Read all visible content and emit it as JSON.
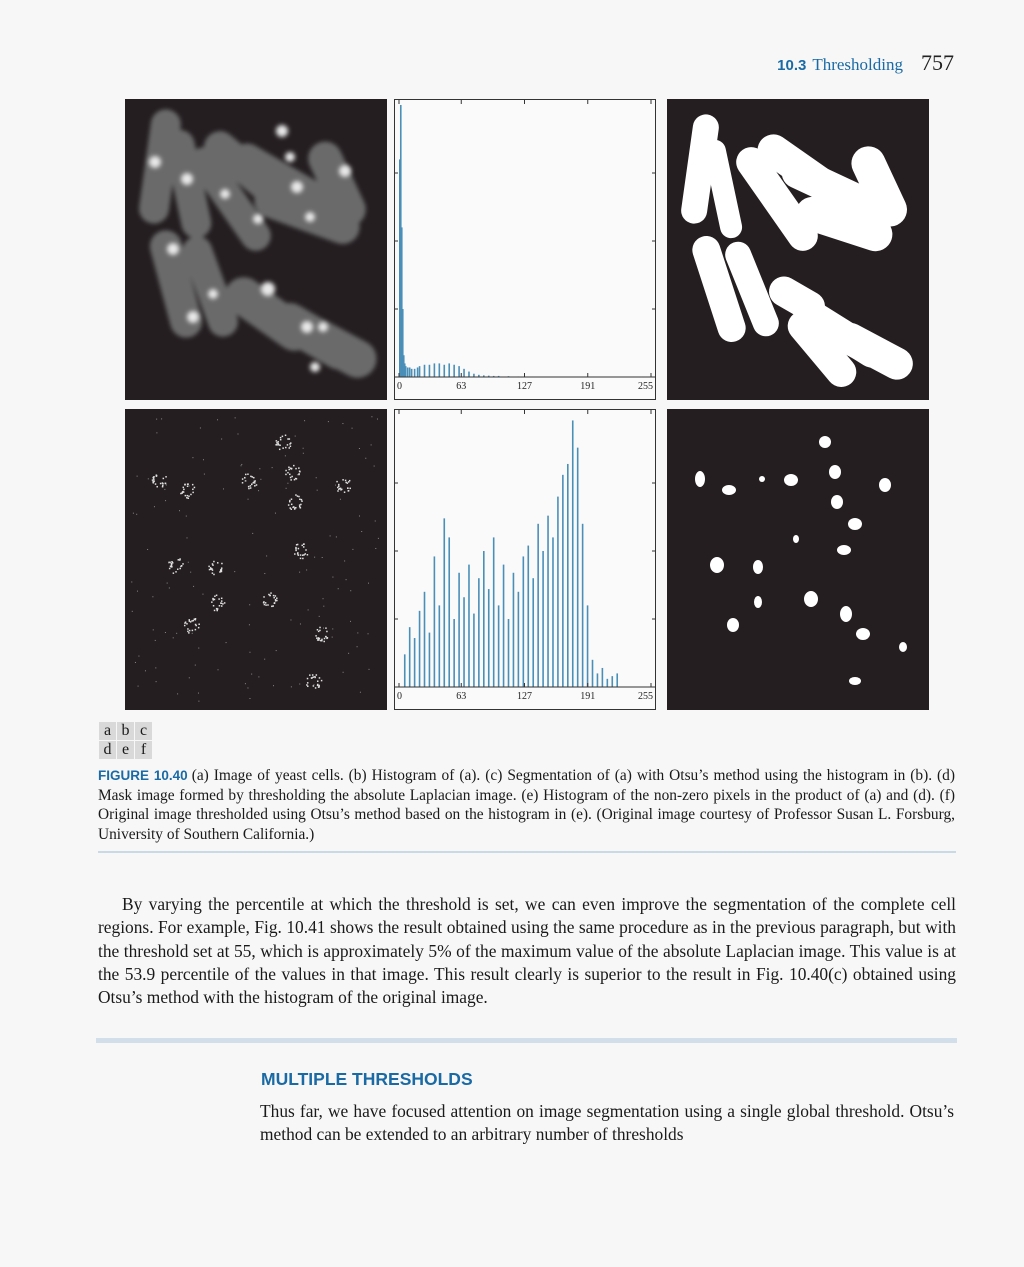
{
  "header": {
    "section_number": "10.3",
    "section_title": "Thresholding",
    "page_number": "757"
  },
  "figure": {
    "panel_labels": [
      [
        "a",
        "b",
        "c"
      ],
      [
        "d",
        "e",
        "f"
      ]
    ],
    "histogram_tick_labels": [
      "0",
      "63",
      "127",
      "191",
      "255"
    ],
    "label": "FIGURE 10.40",
    "caption": "(a) Image of yeast cells. (b) Histogram of (a). (c) Segmentation of (a) with Otsu’s method using the histogram in (b). (d) Mask image formed by thresholding the absolute Laplacian image. (e) Histogram of the non-zero pixels in the product of (a) and (d). (f) Original image thresholded using Otsu’s method based on the histogram in (e). (Original image courtesy of Professor Susan L. Forsburg, University of Southern California.)"
  },
  "chart_data": [
    {
      "type": "bar",
      "title": "",
      "xlabel": "",
      "ylabel": "",
      "xlim": [
        0,
        255
      ],
      "x_ticks": [
        0,
        63,
        127,
        191,
        255
      ],
      "x": [
        0,
        1,
        2,
        3,
        4,
        5,
        6,
        8,
        10,
        12,
        15,
        18,
        20,
        25,
        30,
        35,
        40,
        45,
        50,
        55,
        60,
        65,
        70,
        75,
        80,
        85,
        90,
        95,
        100,
        110,
        120,
        130,
        140
      ],
      "values": [
        0.8,
        1.0,
        0.55,
        0.25,
        0.08,
        0.05,
        0.04,
        0.035,
        0.035,
        0.03,
        0.03,
        0.035,
        0.04,
        0.045,
        0.045,
        0.05,
        0.05,
        0.045,
        0.05,
        0.045,
        0.04,
        0.03,
        0.02,
        0.012,
        0.008,
        0.006,
        0.005,
        0.004,
        0.004,
        0.003,
        0.002,
        0.001,
        0.0
      ],
      "colors": {
        "bar": "#4a8fb8"
      }
    },
    {
      "type": "bar",
      "title": "",
      "xlabel": "",
      "ylabel": "",
      "xlim": [
        0,
        255
      ],
      "x_ticks": [
        0,
        63,
        127,
        191,
        255
      ],
      "x": [
        5,
        10,
        15,
        20,
        25,
        30,
        35,
        40,
        45,
        50,
        55,
        60,
        65,
        70,
        75,
        80,
        85,
        90,
        95,
        100,
        105,
        110,
        115,
        120,
        125,
        130,
        135,
        140,
        145,
        150,
        155,
        160,
        165,
        170,
        175,
        180,
        185,
        190,
        195,
        200,
        205,
        210,
        215,
        220,
        225
      ],
      "values": [
        0.12,
        0.22,
        0.18,
        0.28,
        0.35,
        0.2,
        0.48,
        0.3,
        0.62,
        0.55,
        0.25,
        0.42,
        0.33,
        0.45,
        0.27,
        0.4,
        0.5,
        0.36,
        0.55,
        0.3,
        0.45,
        0.25,
        0.42,
        0.35,
        0.48,
        0.52,
        0.4,
        0.6,
        0.5,
        0.63,
        0.55,
        0.7,
        0.78,
        0.82,
        0.98,
        0.88,
        0.6,
        0.3,
        0.1,
        0.05,
        0.07,
        0.03,
        0.04,
        0.05,
        0.0
      ],
      "colors": {
        "bar": "#4a8fb8"
      }
    }
  ],
  "body": {
    "paragraph": "By varying the percentile at which the threshold is set, we can even improve the segmentation of the complete cell regions. For example, Fig. 10.41 shows the result obtained using the same procedure as in the previous paragraph, but with the threshold set at 55, which is approximately 5% of the maximum value of the absolute Laplacian image. This value is at the 53.9 percentile of the values in that image. This result clearly is superior to the result in Fig. 10.40(c) obtained using Otsu’s method with the histogram of the original image.",
    "section_heading": "MULTIPLE THRESHOLDS",
    "section_paragraph": "Thus far, we have focused attention on image segmentation using a single global threshold. Otsu’s method can be extended to an arbitrary number of thresholds"
  }
}
